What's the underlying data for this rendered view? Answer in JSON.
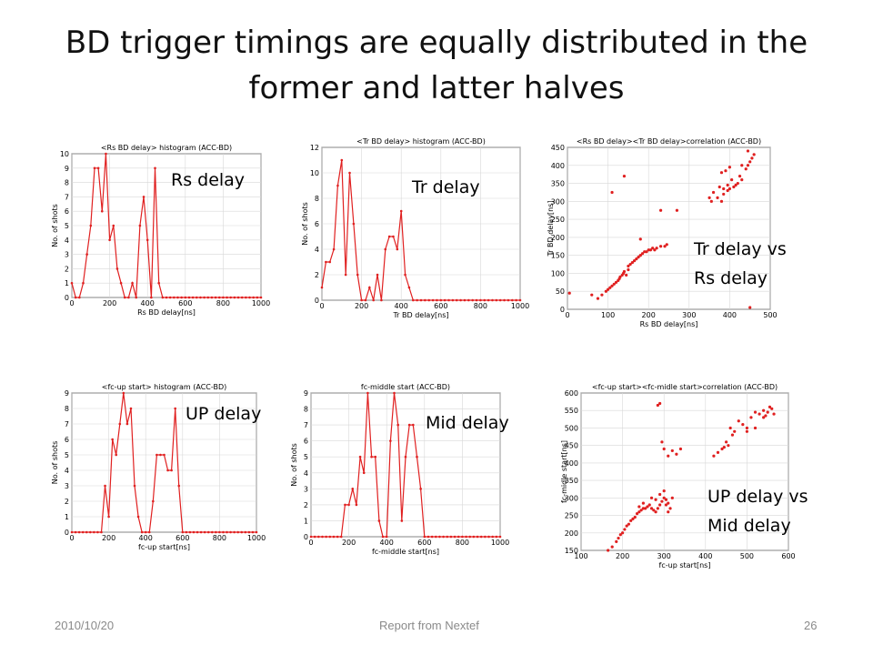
{
  "slide": {
    "title_line1": "BD trigger timings are equally distributed in the",
    "title_line2": "former and latter halves",
    "footer_date": "2010/10/20",
    "footer_center": "Report from Nextef",
    "page_number": "26"
  },
  "labels": {
    "rs": "Rs delay",
    "tr": "Tr delay",
    "corr1_line1": "Tr delay vs",
    "corr1_line2": "Rs delay",
    "up": "UP delay",
    "mid": "Mid delay",
    "corr2_line1": "UP delay vs",
    "corr2_line2": "Mid delay"
  },
  "chart_data": [
    {
      "type": "line",
      "title": "<Rs BD delay> histogram (ACC-BD)",
      "xlabel": "Rs BD delay[ns]",
      "ylabel": "No. of shots",
      "xlim": [
        0,
        1000
      ],
      "ylim": [
        0,
        10
      ],
      "xticks": [
        0,
        200,
        400,
        600,
        800,
        1000
      ],
      "yticks": [
        0,
        1,
        2,
        3,
        4,
        5,
        6,
        7,
        8,
        9,
        10
      ],
      "grid": true,
      "color": "#e02020",
      "x": [
        0,
        20,
        40,
        60,
        80,
        100,
        120,
        140,
        160,
        180,
        200,
        220,
        240,
        260,
        280,
        300,
        320,
        340,
        360,
        380,
        400,
        420,
        440,
        460,
        480,
        500,
        520,
        540,
        560,
        580,
        600,
        620,
        640,
        660,
        680,
        700,
        720,
        740,
        760,
        780,
        800,
        820,
        840,
        860,
        880,
        900,
        920,
        940,
        960,
        980,
        1000
      ],
      "y": [
        1,
        0,
        0,
        1,
        3,
        5,
        9,
        9,
        6,
        10,
        4,
        5,
        2,
        1,
        0,
        0,
        1,
        0,
        5,
        7,
        4,
        0,
        9,
        1,
        0,
        0,
        0,
        0,
        0,
        0,
        0,
        0,
        0,
        0,
        0,
        0,
        0,
        0,
        0,
        0,
        0,
        0,
        0,
        0,
        0,
        0,
        0,
        0,
        0,
        0,
        0
      ]
    },
    {
      "type": "line",
      "title": "<Tr BD delay> histogram (ACC-BD)",
      "xlabel": "Tr BD delay[ns]",
      "ylabel": "No. of shots",
      "xlim": [
        0,
        1000
      ],
      "ylim": [
        0,
        12
      ],
      "xticks": [
        0,
        200,
        400,
        600,
        800,
        1000
      ],
      "yticks": [
        0,
        2,
        4,
        6,
        8,
        10,
        12
      ],
      "grid": true,
      "color": "#e02020",
      "x": [
        0,
        20,
        40,
        60,
        80,
        100,
        120,
        140,
        160,
        180,
        200,
        220,
        240,
        260,
        280,
        300,
        320,
        340,
        360,
        380,
        400,
        420,
        440,
        460,
        480,
        500,
        520,
        540,
        560,
        580,
        600,
        620,
        640,
        660,
        680,
        700,
        720,
        740,
        760,
        780,
        800,
        820,
        840,
        860,
        880,
        900,
        920,
        940,
        960,
        980,
        1000
      ],
      "y": [
        1,
        3,
        3,
        4,
        9,
        11,
        2,
        10,
        6,
        2,
        0,
        0,
        1,
        0,
        2,
        0,
        4,
        5,
        5,
        4,
        7,
        2,
        1,
        0,
        0,
        0,
        0,
        0,
        0,
        0,
        0,
        0,
        0,
        0,
        0,
        0,
        0,
        0,
        0,
        0,
        0,
        0,
        0,
        0,
        0,
        0,
        0,
        0,
        0,
        0,
        0
      ]
    },
    {
      "type": "scatter",
      "title": "<Rs BD delay><Tr BD delay>correlation (ACC-BD)",
      "xlabel": "Rs BD delay[ns]",
      "ylabel": "Tr BD delay[ns]",
      "xlim": [
        0,
        500
      ],
      "ylim": [
        0,
        450
      ],
      "xticks": [
        0,
        100,
        200,
        300,
        400,
        500
      ],
      "yticks": [
        0,
        50,
        100,
        150,
        200,
        250,
        300,
        350,
        400,
        450
      ],
      "grid": true,
      "color": "#e02020",
      "x": [
        5,
        60,
        75,
        85,
        95,
        100,
        105,
        110,
        115,
        120,
        125,
        128,
        130,
        135,
        138,
        140,
        145,
        150,
        150,
        155,
        160,
        165,
        170,
        175,
        180,
        180,
        185,
        190,
        195,
        200,
        205,
        210,
        215,
        220,
        230,
        240,
        245,
        110,
        140,
        230,
        270,
        180,
        450,
        380,
        370,
        385,
        395,
        400,
        410,
        415,
        420,
        430,
        425,
        440,
        445,
        450,
        455,
        460,
        445,
        430,
        400,
        390,
        380,
        375,
        360,
        350,
        355,
        385,
        395,
        405
      ],
      "y": [
        45,
        40,
        30,
        40,
        50,
        55,
        60,
        65,
        70,
        75,
        80,
        85,
        90,
        95,
        100,
        105,
        95,
        110,
        120,
        125,
        130,
        135,
        140,
        145,
        150,
        150,
        155,
        160,
        160,
        165,
        165,
        170,
        165,
        170,
        175,
        175,
        180,
        325,
        370,
        275,
        275,
        195,
        5,
        300,
        310,
        320,
        330,
        335,
        340,
        345,
        350,
        360,
        370,
        390,
        400,
        410,
        420,
        430,
        440,
        400,
        395,
        385,
        380,
        340,
        325,
        310,
        300,
        335,
        345,
        360
      ]
    },
    {
      "type": "line",
      "title": "<fc-up start> histogram (ACC-BD)",
      "xlabel": "fc-up start[ns]",
      "ylabel": "No. of shots",
      "xlim": [
        0,
        1000
      ],
      "ylim": [
        0,
        9
      ],
      "xticks": [
        0,
        200,
        400,
        600,
        800,
        1000
      ],
      "yticks": [
        0,
        1,
        2,
        3,
        4,
        5,
        6,
        7,
        8,
        9
      ],
      "grid": true,
      "color": "#e02020",
      "x": [
        0,
        20,
        40,
        60,
        80,
        100,
        120,
        140,
        160,
        180,
        200,
        220,
        240,
        260,
        280,
        300,
        320,
        340,
        360,
        380,
        400,
        420,
        440,
        460,
        480,
        500,
        520,
        540,
        560,
        580,
        600,
        620,
        640,
        660,
        680,
        700,
        720,
        740,
        760,
        780,
        800,
        820,
        840,
        860,
        880,
        900,
        920,
        940,
        960,
        980,
        1000
      ],
      "y": [
        0,
        0,
        0,
        0,
        0,
        0,
        0,
        0,
        0,
        3,
        1,
        6,
        5,
        7,
        9,
        7,
        8,
        3,
        1,
        0,
        0,
        0,
        2,
        5,
        5,
        5,
        4,
        4,
        8,
        3,
        0,
        0,
        0,
        0,
        0,
        0,
        0,
        0,
        0,
        0,
        0,
        0,
        0,
        0,
        0,
        0,
        0,
        0,
        0,
        0,
        0
      ]
    },
    {
      "type": "line",
      "title": "fc-middle start (ACC-BD)",
      "xlabel": "fc-middle start[ns]",
      "ylabel": "No. of shots",
      "xlim": [
        0,
        1000
      ],
      "ylim": [
        0,
        9
      ],
      "xticks": [
        0,
        200,
        400,
        600,
        800,
        1000
      ],
      "yticks": [
        0,
        1,
        2,
        3,
        4,
        5,
        6,
        7,
        8,
        9
      ],
      "grid": true,
      "color": "#e02020",
      "x": [
        0,
        20,
        40,
        60,
        80,
        100,
        120,
        140,
        160,
        180,
        200,
        220,
        240,
        260,
        280,
        300,
        320,
        340,
        360,
        380,
        400,
        420,
        440,
        460,
        480,
        500,
        520,
        540,
        560,
        580,
        600,
        620,
        640,
        660,
        680,
        700,
        720,
        740,
        760,
        780,
        800,
        820,
        840,
        860,
        880,
        900,
        920,
        940,
        960,
        980,
        1000
      ],
      "y": [
        0,
        0,
        0,
        0,
        0,
        0,
        0,
        0,
        0,
        2,
        2,
        3,
        2,
        5,
        4,
        9,
        5,
        5,
        1,
        0,
        0,
        6,
        9,
        7,
        1,
        5,
        7,
        7,
        5,
        3,
        0,
        0,
        0,
        0,
        0,
        0,
        0,
        0,
        0,
        0,
        0,
        0,
        0,
        0,
        0,
        0,
        0,
        0,
        0,
        0,
        0
      ]
    },
    {
      "type": "scatter",
      "title": "<fc-up start><fc-midle start>correlation (ACC-BD)",
      "xlabel": "fc-up start[ns]",
      "ylabel": "fc-midle start[ns]",
      "xlim": [
        100,
        600
      ],
      "ylim": [
        150,
        600
      ],
      "xticks": [
        100,
        200,
        300,
        400,
        500,
        600
      ],
      "yticks": [
        150,
        200,
        250,
        300,
        350,
        400,
        450,
        500,
        550,
        600
      ],
      "grid": true,
      "color": "#e02020",
      "x": [
        165,
        175,
        185,
        190,
        195,
        200,
        205,
        210,
        215,
        220,
        225,
        230,
        235,
        240,
        245,
        250,
        255,
        260,
        265,
        270,
        275,
        280,
        285,
        290,
        295,
        300,
        305,
        310,
        315,
        320,
        240,
        250,
        270,
        280,
        290,
        300,
        305,
        310,
        285,
        290,
        295,
        300,
        310,
        320,
        330,
        340,
        420,
        430,
        440,
        445,
        450,
        455,
        460,
        465,
        470,
        480,
        490,
        500,
        510,
        520,
        530,
        540,
        545,
        550,
        555,
        560,
        565,
        540,
        520,
        500
      ],
      "y": [
        150,
        160,
        175,
        185,
        195,
        200,
        210,
        220,
        225,
        235,
        240,
        245,
        255,
        260,
        265,
        270,
        270,
        275,
        280,
        270,
        265,
        260,
        270,
        280,
        290,
        300,
        295,
        285,
        270,
        300,
        275,
        285,
        300,
        295,
        310,
        320,
        280,
        260,
        565,
        570,
        460,
        440,
        420,
        435,
        425,
        440,
        420,
        430,
        440,
        445,
        460,
        450,
        500,
        480,
        490,
        520,
        510,
        500,
        530,
        545,
        540,
        550,
        535,
        545,
        560,
        555,
        540,
        530,
        500,
        490
      ]
    }
  ]
}
